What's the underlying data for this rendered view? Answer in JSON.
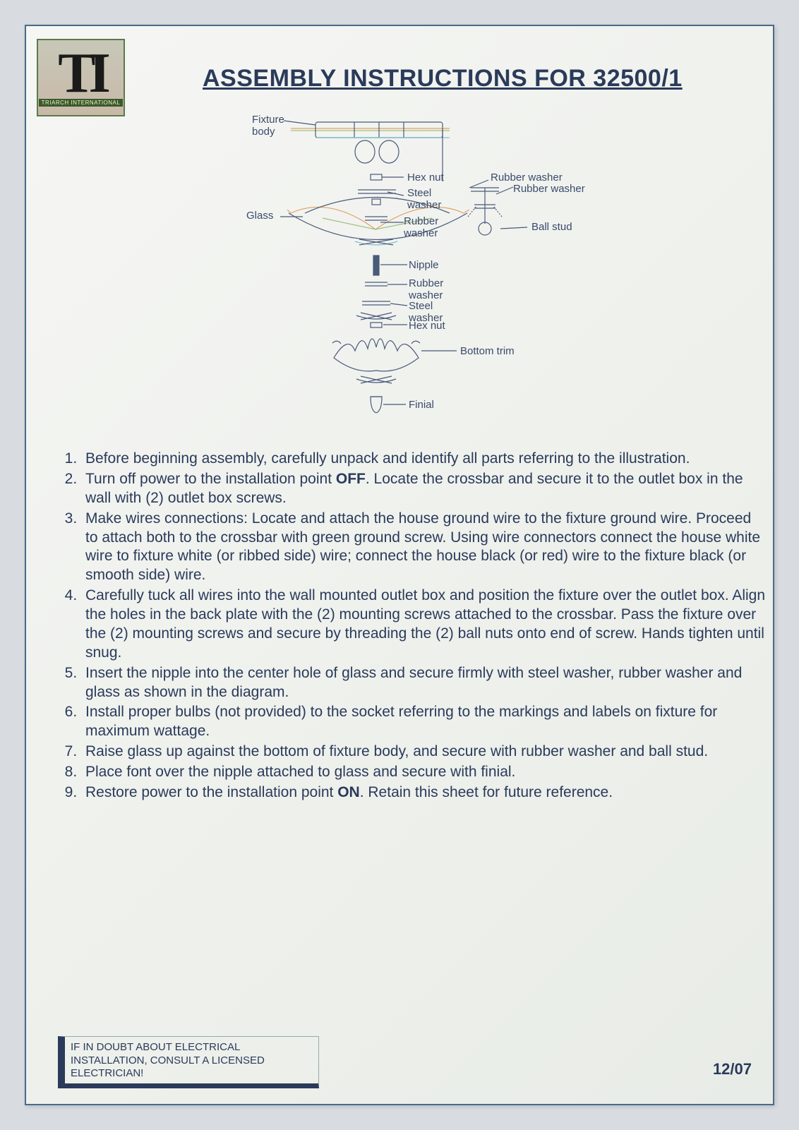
{
  "logo": {
    "letters": "TI",
    "subtext": "TRIARCH INTERNATIONAL"
  },
  "title": "ASSEMBLY INSTRUCTIONS FOR 32500/1",
  "diagram": {
    "labels": {
      "fixture_body": "Fixture\nbody",
      "glass": "Glass",
      "hex_nut_top": "Hex nut",
      "steel_washer_top": "Steel\nwasher",
      "rubber_washer_top": "Rubber\nwasher",
      "rubber_washer_r1": "Rubber washer",
      "rubber_washer_r2": "Rubber washer",
      "ball_stud": "Ball stud",
      "nipple": "Nipple",
      "rubber_washer_mid": "Rubber\nwasher",
      "steel_washer_mid": "Steel\nwasher",
      "hex_nut_mid": "Hex nut",
      "bottom_trim": "Bottom trim",
      "finial": "Finial"
    },
    "colors": {
      "line": "#4a5a7a",
      "thin": "#8a9ab0",
      "accent_orange": "#e0a060",
      "accent_green": "#a0c080",
      "accent_cyan": "#80c0d0"
    }
  },
  "steps": [
    "Before beginning assembly, carefully unpack and identify all parts referring to the illustration.",
    "Turn off power to the installation point <b>OFF</b>. Locate the crossbar and secure it to the outlet box in the wall with (2) outlet box screws.",
    "Make wires connections: Locate and attach the house ground wire to the fixture ground wire. Proceed to attach both to the crossbar with green ground screw. Using wire connectors connect the house white wire to fixture white (or ribbed side) wire; connect the house black (or red) wire to the fixture black (or smooth side) wire.",
    "Carefully tuck all wires into the wall mounted outlet box and position the fixture over the outlet box. Align the holes in the back plate with the (2) mounting screws attached to the crossbar. Pass the fixture over the (2) mounting screws and secure by threading the (2) ball nuts onto end of screw. Hands tighten until snug.",
    "Insert the nipple into the center hole of glass and secure firmly with steel washer, rubber washer and glass as shown in the diagram.",
    "Install proper bulbs (not provided) to the socket referring to the markings and labels on fixture for maximum wattage.",
    "Raise glass up against the bottom of fixture body, and secure with rubber washer and ball stud.",
    "Place font over the nipple attached to glass and secure with finial.",
    "Restore power to the installation point <b>ON</b>. Retain this sheet for future reference."
  ],
  "footer": {
    "warning": "IF IN DOUBT ABOUT ELECTRICAL INSTALLATION, CONSULT A LICENSED ELECTRICIAN!",
    "date": "12/07"
  }
}
